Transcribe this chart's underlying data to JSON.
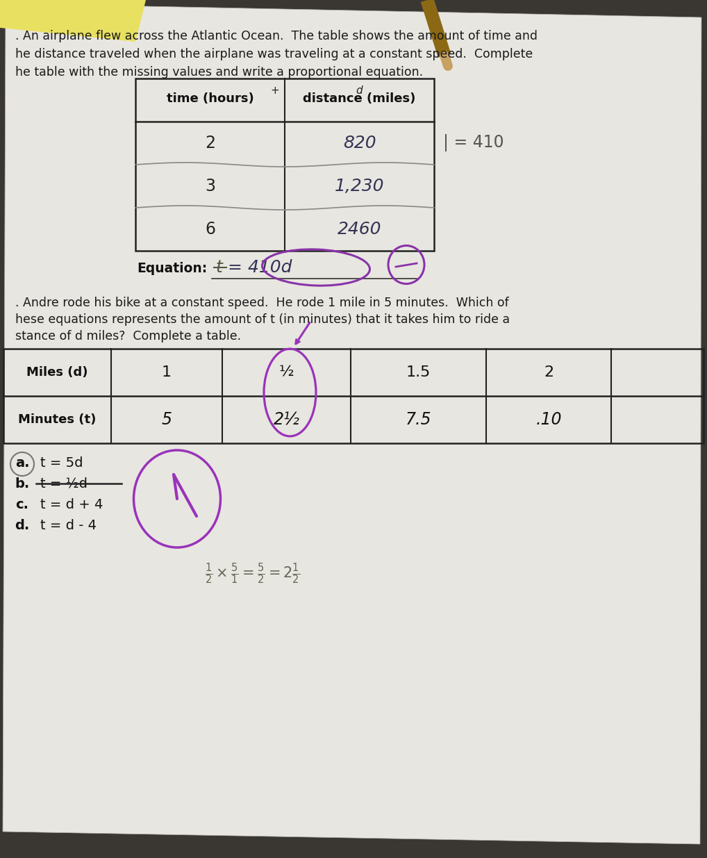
{
  "bg_color": "#3a3632",
  "paper_color": "#e8e6e0",
  "title1": ". An airplane flew across the Atlantic Ocean.  The table shows the amount of time and",
  "title2": "he distance traveled when the airplane was traveling at a constant speed.  Complete",
  "title3": "he table with the missing values and write a proportional equation.",
  "table1_col1_header": "time (hours)",
  "table1_col2_header": "distance (miles)",
  "table1_rows": [
    [
      "2",
      "820"
    ],
    [
      "3",
      "1,230"
    ],
    [
      "6",
      "2460"
    ]
  ],
  "equation_label": "Equation:",
  "aside_note": "| = 410",
  "title4": ". Andre rode his bike at a constant speed.  He rode 1 mile in 5 minutes.  Which of",
  "title5": "hese equations represents the amount of t (in minutes) that it takes him to ride a",
  "title6": "stance of d miles?  Complete a table.",
  "table2_row1": [
    "Miles (d)",
    "1",
    "½",
    "1.5",
    "2"
  ],
  "table2_row2": [
    "Minutes (t)",
    "5",
    "2½",
    "7.5",
    ".10"
  ],
  "choices": [
    [
      "a.",
      "t = 5d"
    ],
    [
      "b.",
      "t = ½d"
    ],
    [
      "c.",
      "t = d + 4"
    ],
    [
      "d.",
      "t = d - 4"
    ]
  ],
  "bottom_note_latex": "\\frac{1}{2} \\times \\frac{5}{1} = \\frac{5}{2} = 2\\frac{1}{2}"
}
